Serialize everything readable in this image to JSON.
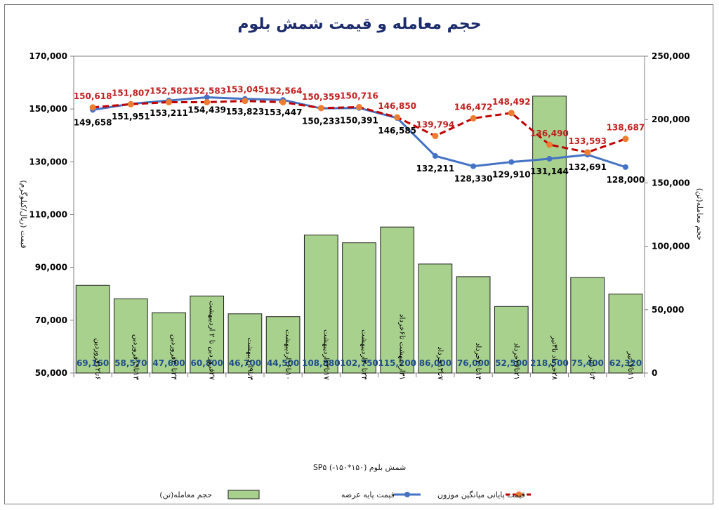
{
  "chart_data": {
    "type": "bar+line",
    "title": "حجم معامله و قیمت شمش بلوم",
    "xlabel": "شمش بلوم (۱۵۰*۱۵۰-) SP۵",
    "ylabel_left": "قیمت (ریال/کیلوگرم)",
    "ylabel_right": "حجم معامله(تن)",
    "ylim_left": [
      50000,
      170000
    ],
    "ylim_right": [
      0,
      250000
    ],
    "yticks_left": [
      "50,000",
      "70,000",
      "90,000",
      "110,000",
      "130,000",
      "150,000",
      "170,000"
    ],
    "yticks_right": [
      "0",
      "50,000",
      "100,000",
      "150,000",
      "200,000",
      "250,000"
    ],
    "grid": false,
    "legend_position": "bottom",
    "categories": [
      "۶تا۱۲فروردین",
      "۱۳تا۱۹فروردین",
      "۲۴تا۳۰فروردین",
      "۲۷فروردین تا ۲ اردیبهشت",
      "۳تا۹اردیبهشت",
      "۱۰تا۱۶اردیبهشت",
      "۱۷تا۲۳اردیبهشت",
      "۲۴تا۳۰اردیبهشت",
      "۳۱اردیبهشت تا۶خرداد",
      "۷تا۱۳خرداد",
      "۱۴تا۲۰خرداد",
      "۲۱تا۲۷خرداد",
      "۲۸خرداد تا۳تیر",
      "۴تا۱۰تیر",
      "۱۱تا۱۷تیر"
    ],
    "series": [
      {
        "name": "حجم معامله(تن)",
        "type": "bar",
        "axis": "right",
        "color": "#a9d18e",
        "values": [
          69160,
          58570,
          47600,
          60800,
          46700,
          44500,
          108880,
          102750,
          115200,
          86000,
          76000,
          52500,
          218500,
          75400,
          62320
        ],
        "labels": [
          "69,160",
          "58,570",
          "47,600",
          "60,800",
          "46,700",
          "44,500",
          "108,880",
          "102,750",
          "115,200",
          "86,000",
          "76,000",
          "52,500",
          "218,500",
          "75,400",
          "62,320"
        ]
      },
      {
        "name": "قیمت پایه عرضه",
        "type": "line",
        "axis": "left",
        "color": "#4472c4",
        "values": [
          149658,
          151951,
          153211,
          154439,
          153823,
          153447,
          150233,
          150391,
          146585,
          132211,
          128330,
          129910,
          131144,
          132691,
          128000
        ],
        "labels": [
          "149,658",
          "151,951",
          "153,211",
          "154,439",
          "153,823",
          "153,447",
          "150,233",
          "150,391",
          "146,585",
          "132,211",
          "128,330",
          "129,910",
          "131,144",
          "132,691",
          "128,000"
        ]
      },
      {
        "name": "قیمت پایانی میانگین موزون",
        "type": "line-dashed",
        "axis": "left",
        "color": "#c00000",
        "marker_color": "#ed7d31",
        "values": [
          150618,
          151807,
          152582,
          152583,
          153045,
          152564,
          150359,
          150716,
          146850,
          139794,
          146472,
          148492,
          136490,
          133593,
          138687
        ],
        "labels": [
          "150,618",
          "151,807",
          "152,582",
          "152,583",
          "153,045",
          "152,564",
          "150,359",
          "150,716",
          "146,850",
          "139,794",
          "146,472",
          "148,492",
          "136,490",
          "133,593",
          "138,687"
        ]
      }
    ]
  }
}
